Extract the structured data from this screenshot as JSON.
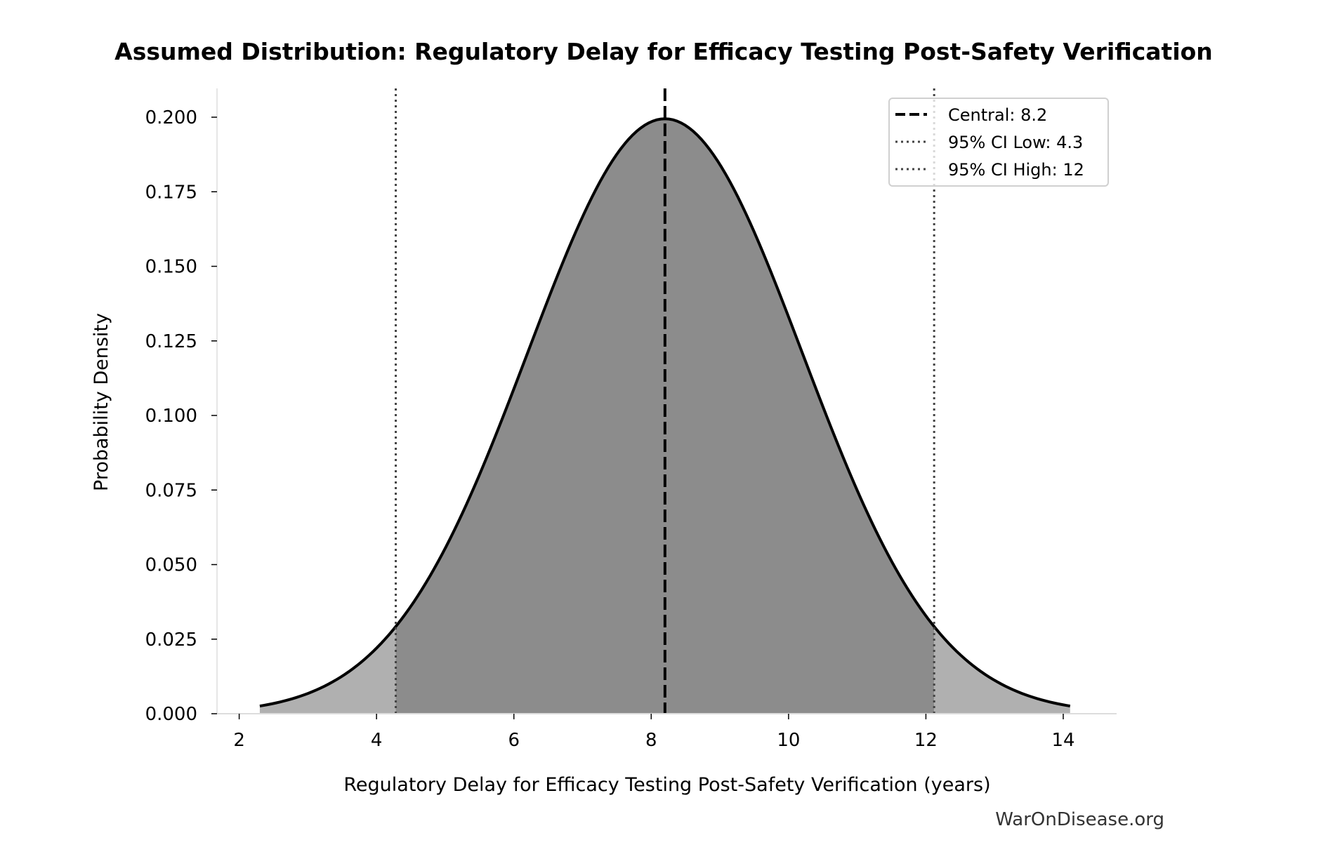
{
  "chart_data": {
    "type": "area",
    "title": "Assumed Distribution: Regulatory Delay for Efficacy Testing Post-Safety Verification",
    "xlabel": "Regulatory Delay for Efficacy Testing Post-Safety Verification (years)",
    "ylabel": "Probability Density",
    "xlim": [
      1.7,
      14.7
    ],
    "ylim": [
      0,
      0.21
    ],
    "xticks": [
      "2",
      "4",
      "6",
      "8",
      "10",
      "12",
      "14"
    ],
    "yticks": [
      "0.000",
      "0.025",
      "0.050",
      "0.075",
      "0.100",
      "0.125",
      "0.150",
      "0.175",
      "0.200"
    ],
    "distribution": {
      "family": "normal",
      "mean": 8.2,
      "sd": 2.0,
      "x_min": 2.3,
      "x_max": 14.1
    },
    "central": 8.2,
    "ci_low": 4.28,
    "ci_high": 12.12,
    "legend": {
      "placement": "top-right",
      "entries": [
        "Central: 8.2",
        "95% CI Low: 4.3",
        "95% CI High: 12"
      ]
    },
    "grid": false,
    "colors": {
      "ci_fill": "#8c8c8c",
      "tail_fill": "#b0b0b0",
      "curve": "#000000",
      "ci_line": "#444444"
    }
  },
  "watermark": "WarOnDisease.org"
}
